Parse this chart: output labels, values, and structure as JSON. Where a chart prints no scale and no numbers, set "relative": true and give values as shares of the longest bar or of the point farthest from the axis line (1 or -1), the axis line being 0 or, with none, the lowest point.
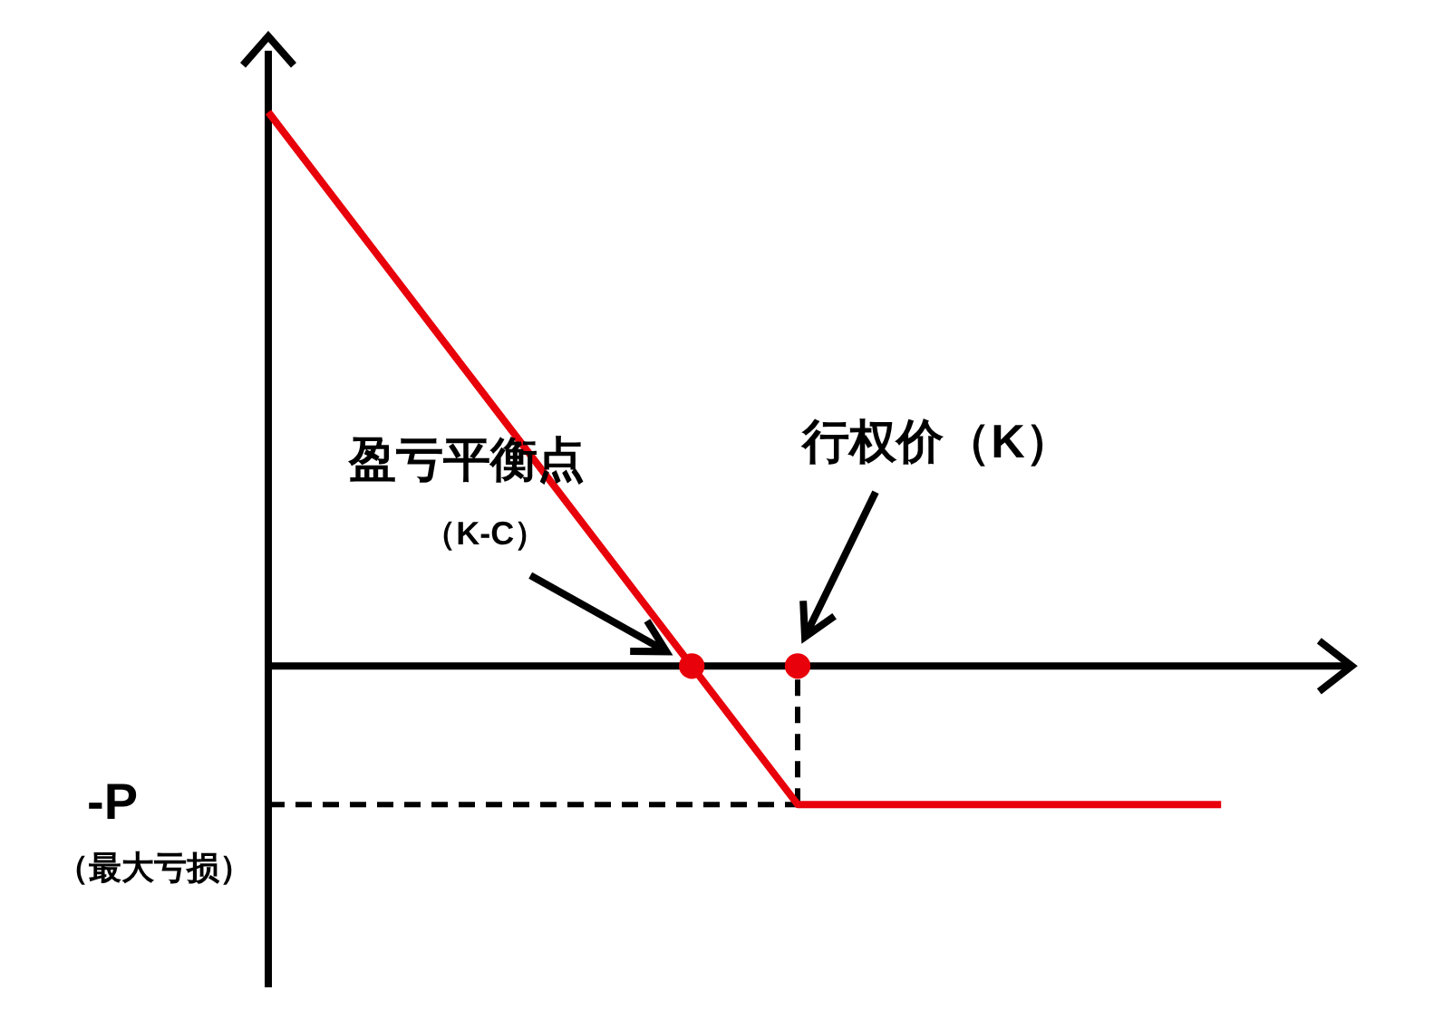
{
  "chart_data": {
    "type": "line",
    "relative": true,
    "categories": [
      null,
      null,
      null,
      null,
      null,
      null,
      null,
      null,
      null,
      null
    ],
    "series": [
      {
        "color": "#e8000b",
        "line_style": "solid",
        "values": [
          1,
          0.75,
          0.5,
          0.25,
          0,
          -0.25,
          -0.25,
          -0.25,
          -0.25,
          -0.25
        ]
      }
    ],
    "ref_lines": [
      {
        "axis": "y",
        "value": -0.25,
        "label": "-P",
        "color": "#000000",
        "line_style": "dashed"
      }
    ],
    "annotations": [
      "盈亏平衡点",
      "（K-C）",
      "行权价（K）",
      "（最大亏损）"
    ]
  }
}
